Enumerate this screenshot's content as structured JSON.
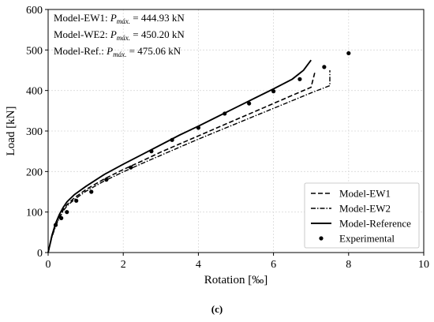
{
  "chart_data": {
    "type": "line",
    "xlabel": "Rotation [‰]",
    "ylabel": "Load [kN]",
    "xlim": [
      0,
      10
    ],
    "ylim": [
      0,
      600
    ],
    "xticks": [
      "0",
      "2",
      "4",
      "6",
      "8",
      "10"
    ],
    "yticks": [
      "0",
      "100",
      "200",
      "300",
      "400",
      "500",
      "600"
    ],
    "grid": true,
    "legend_position": "bottom-right",
    "annotations": [
      {
        "prefix": "Model-EW1: ",
        "p": "P",
        "sub": "máx.",
        "suffix": " = 444.93 kN"
      },
      {
        "prefix": "Model-WE2: ",
        "p": "P",
        "sub": "máx.",
        "suffix": " = 450.20 kN"
      },
      {
        "prefix": "Model-Ref.: ",
        "p": "P",
        "sub": "máx.",
        "suffix": " = 475.06 kN"
      }
    ],
    "panel_label": "(c)",
    "series": [
      {
        "name": "Model-EW1",
        "style": "dashed",
        "points": [
          [
            0,
            0
          ],
          [
            0.1,
            40
          ],
          [
            0.2,
            68
          ],
          [
            0.3,
            88
          ],
          [
            0.4,
            105
          ],
          [
            0.5,
            118
          ],
          [
            0.7,
            135
          ],
          [
            1.0,
            155
          ],
          [
            1.5,
            182
          ],
          [
            2.0,
            205
          ],
          [
            2.5,
            226
          ],
          [
            3.0,
            248
          ],
          [
            3.5,
            268
          ],
          [
            4.0,
            288
          ],
          [
            4.5,
            308
          ],
          [
            5.0,
            328
          ],
          [
            5.5,
            348
          ],
          [
            6.0,
            368
          ],
          [
            6.5,
            388
          ],
          [
            7.0,
            408
          ],
          [
            7.1,
            445
          ]
        ]
      },
      {
        "name": "Model-EW2",
        "style": "dashdot",
        "points": [
          [
            0,
            0
          ],
          [
            0.1,
            38
          ],
          [
            0.2,
            65
          ],
          [
            0.3,
            85
          ],
          [
            0.4,
            102
          ],
          [
            0.5,
            115
          ],
          [
            0.7,
            131
          ],
          [
            1.0,
            151
          ],
          [
            1.5,
            177
          ],
          [
            2.0,
            199
          ],
          [
            2.5,
            220
          ],
          [
            3.0,
            240
          ],
          [
            3.5,
            260
          ],
          [
            4.0,
            280
          ],
          [
            4.5,
            299
          ],
          [
            5.0,
            318
          ],
          [
            5.5,
            337
          ],
          [
            6.0,
            356
          ],
          [
            6.5,
            375
          ],
          [
            7.0,
            394
          ],
          [
            7.5,
            412
          ],
          [
            7.5,
            450
          ]
        ]
      },
      {
        "name": "Model-Reference",
        "style": "solid",
        "points": [
          [
            0,
            0
          ],
          [
            0.1,
            42
          ],
          [
            0.2,
            72
          ],
          [
            0.3,
            94
          ],
          [
            0.4,
            111
          ],
          [
            0.5,
            125
          ],
          [
            0.7,
            143
          ],
          [
            1.0,
            163
          ],
          [
            1.5,
            193
          ],
          [
            2.0,
            218
          ],
          [
            2.5,
            242
          ],
          [
            3.0,
            266
          ],
          [
            3.5,
            290
          ],
          [
            4.0,
            312
          ],
          [
            4.5,
            335
          ],
          [
            5.0,
            358
          ],
          [
            5.5,
            381
          ],
          [
            6.0,
            404
          ],
          [
            6.5,
            428
          ],
          [
            6.8,
            450
          ],
          [
            7.0,
            475
          ]
        ]
      },
      {
        "name": "Experimental",
        "style": "markers",
        "points": [
          [
            0.2,
            68
          ],
          [
            0.35,
            85
          ],
          [
            0.5,
            100
          ],
          [
            0.75,
            128
          ],
          [
            1.15,
            150
          ],
          [
            1.55,
            180
          ],
          [
            2.2,
            210
          ],
          [
            2.75,
            250
          ],
          [
            3.3,
            278
          ],
          [
            4.0,
            308
          ],
          [
            4.7,
            343
          ],
          [
            5.35,
            368
          ],
          [
            6.0,
            398
          ],
          [
            6.7,
            428
          ],
          [
            7.35,
            458
          ],
          [
            8.0,
            492
          ]
        ]
      }
    ]
  }
}
